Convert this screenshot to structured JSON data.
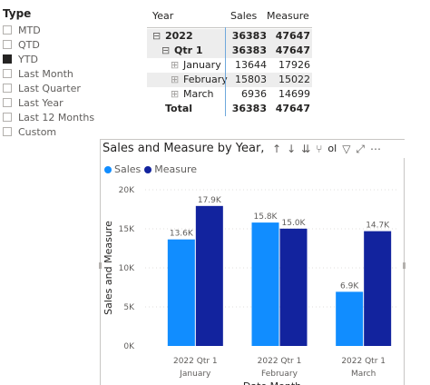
{
  "slicer": {
    "title": "Type",
    "items": [
      {
        "label": "MTD",
        "checked": false
      },
      {
        "label": "QTD",
        "checked": false
      },
      {
        "label": "YTD",
        "checked": true
      },
      {
        "label": "Last Month",
        "checked": false
      },
      {
        "label": "Last Quarter",
        "checked": false
      },
      {
        "label": "Last Year",
        "checked": false
      },
      {
        "label": "Last 12 Months",
        "checked": false
      },
      {
        "label": "Custom",
        "checked": false
      }
    ]
  },
  "matrix": {
    "headers": {
      "row": "Year",
      "sales": "Sales",
      "measure": "Measure"
    },
    "rows": [
      {
        "label": "2022",
        "sales": "36383",
        "measure": "47647",
        "toggle": "⊟"
      },
      {
        "label": "Qtr 1",
        "sales": "36383",
        "measure": "47647",
        "toggle": "⊟"
      },
      {
        "label": "January",
        "sales": "13644",
        "measure": "17926",
        "toggle": "⊞"
      },
      {
        "label": "February",
        "sales": "15803",
        "measure": "15022",
        "toggle": "⊞"
      },
      {
        "label": "March",
        "sales": "6936",
        "measure": "14699",
        "toggle": "⊞"
      },
      {
        "label": "Total",
        "sales": "36383",
        "measure": "47647"
      }
    ]
  },
  "visual": {
    "title": "Sales and Measure by Year, Q",
    "toolbar_icons": [
      "arrow-up-icon",
      "arrow-down-icon",
      "double-arrow-down-icon",
      "fork-icon",
      "filter-icon",
      "focus-mode-icon",
      "more-options-icon"
    ],
    "toolbar_glyphs": {
      "arrow_up": "↑",
      "arrow_down": "↓",
      "double_down": "⇊",
      "fork": "⑂",
      "filter": "▽",
      "focus": "⤢",
      "more": "⋯",
      "partial": "ol"
    }
  },
  "chart_data": {
    "type": "bar",
    "title": "Sales and Measure by Year, Q",
    "categories": [
      {
        "line1": "2022 Qtr 1",
        "line2": "January"
      },
      {
        "line1": "2022 Qtr 1",
        "line2": "February"
      },
      {
        "line1": "2022 Qtr 1",
        "line2": "March"
      }
    ],
    "series": [
      {
        "name": "Sales",
        "color": "#118dff",
        "values": [
          13644,
          15803,
          6936
        ],
        "labels": [
          "13.6K",
          "15.8K",
          "6.9K"
        ]
      },
      {
        "name": "Measure",
        "color": "#12239e",
        "values": [
          17926,
          15022,
          14699
        ],
        "labels": [
          "17.9K",
          "15.0K",
          "14.7K"
        ]
      }
    ],
    "ylabel": "Sales and Measure",
    "xlabel": "Date Month",
    "ylim": [
      0,
      20000
    ],
    "yticks": [
      {
        "v": 0,
        "label": "0K"
      },
      {
        "v": 5000,
        "label": "5K"
      },
      {
        "v": 10000,
        "label": "10K"
      },
      {
        "v": 15000,
        "label": "15K"
      },
      {
        "v": 20000,
        "label": "20K"
      }
    ],
    "grid": true,
    "legend": "top-left"
  }
}
